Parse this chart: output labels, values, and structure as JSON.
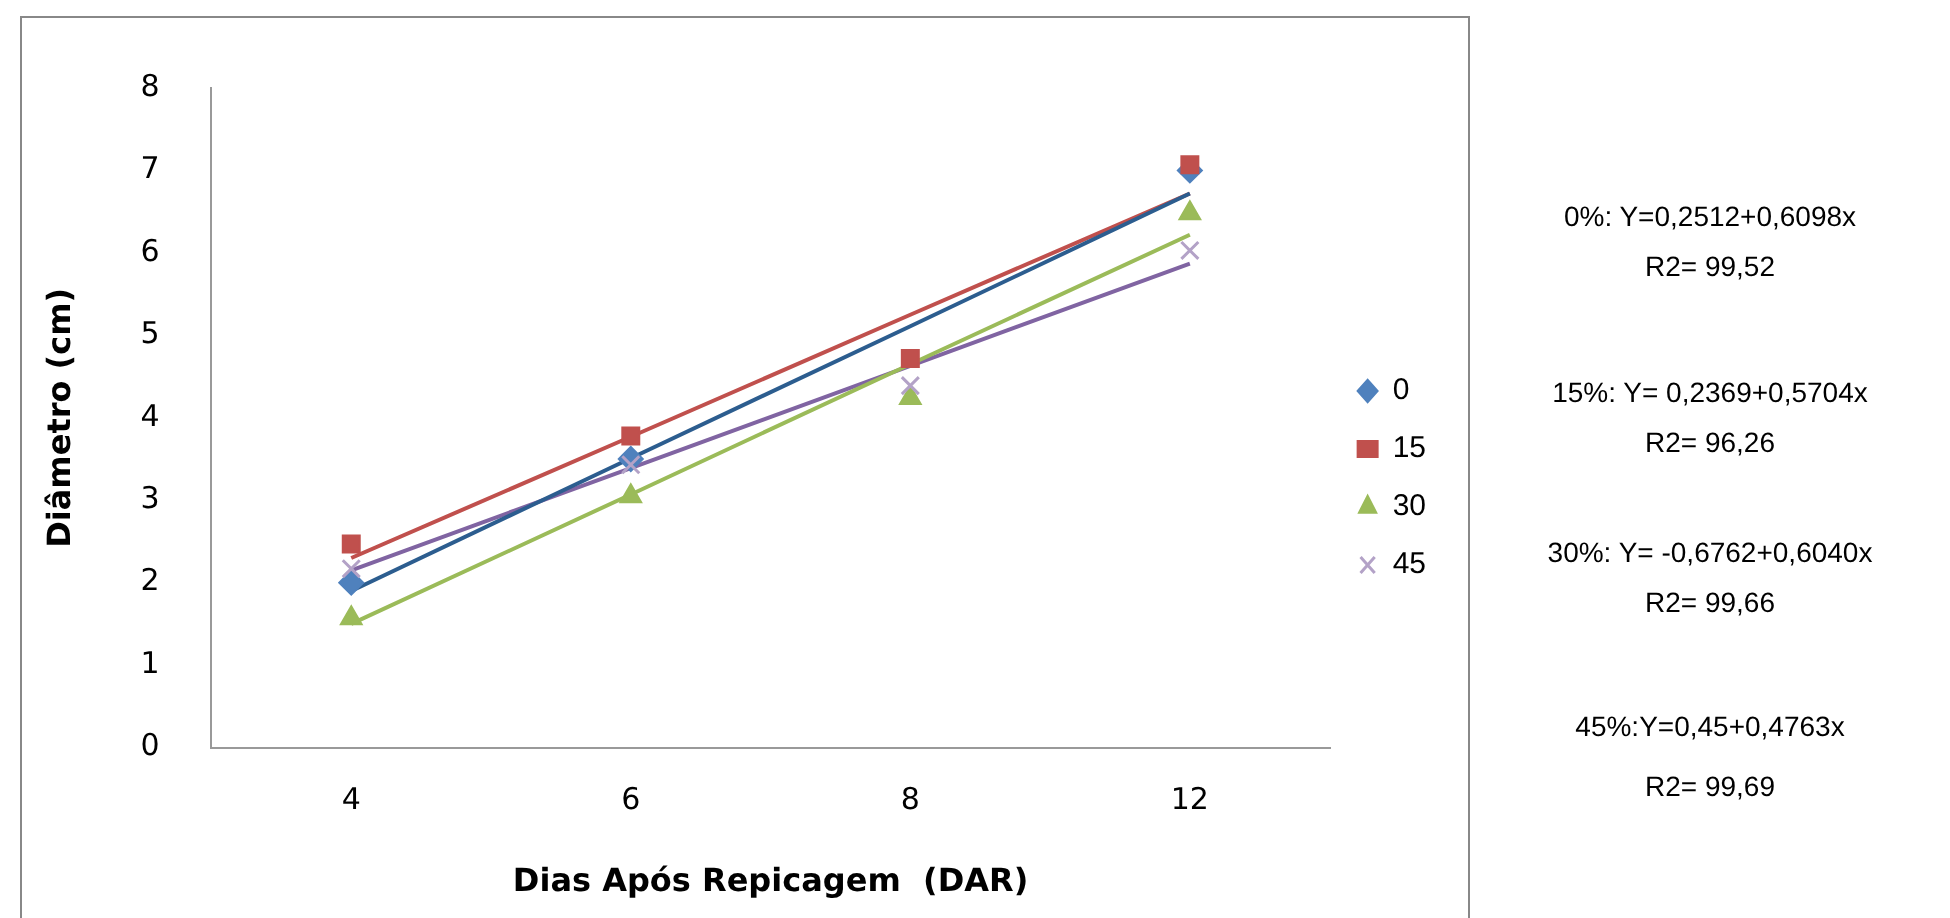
{
  "chart_data": {
    "type": "line",
    "xlabel": "Dias Após Repicagem  (DAR)",
    "ylabel": "Diâmetro (cm)",
    "categories": [
      "4",
      "6",
      "8",
      "12"
    ],
    "ylim": [
      0,
      8
    ],
    "yticks": [
      0,
      1,
      2,
      3,
      4,
      5,
      6,
      7,
      8
    ],
    "grid": false,
    "legend": "right",
    "series": [
      {
        "name": "0",
        "type": "scatter",
        "marker": "diamond",
        "color": "#4f81bd",
        "values": [
          2.0,
          3.5,
          null,
          7.0
        ]
      },
      {
        "name": "15",
        "type": "scatter",
        "marker": "square",
        "color": "#c0504d",
        "values": [
          2.47,
          3.78,
          4.72,
          7.07
        ]
      },
      {
        "name": "30",
        "type": "scatter",
        "marker": "triangle",
        "color": "#9bbb59",
        "values": [
          1.57,
          3.05,
          4.24,
          6.48
        ]
      },
      {
        "name": "45",
        "type": "scatter",
        "marker": "cross",
        "color": "#b3a2c7",
        "values": [
          2.17,
          3.43,
          4.39,
          6.03
        ]
      },
      {
        "type": "line",
        "marker": "none",
        "color": "#2c5d8f",
        "values": [
          1.9,
          3.51,
          5.11,
          6.72
        ]
      },
      {
        "type": "line",
        "marker": "none",
        "color": "#c0504d",
        "values": [
          2.3,
          3.77,
          5.25,
          6.72
        ]
      },
      {
        "type": "line",
        "marker": "none",
        "color": "#9bbb59",
        "values": [
          1.5,
          3.07,
          4.65,
          6.22
        ]
      },
      {
        "type": "line",
        "marker": "none",
        "color": "#8064a2",
        "values": [
          2.15,
          3.39,
          4.63,
          5.87
        ]
      }
    ],
    "annotations": [
      "0%: Y=0,2512+0,6098x",
      "R2= 99,52",
      "15%: Y= 0,2369+0,5704x",
      "R2= 96,26",
      "30%: Y= -0,6762+0,6040x",
      "R2= 99,66",
      "45%:Y=0,45+0,4763x",
      "R2= 99,69"
    ]
  }
}
